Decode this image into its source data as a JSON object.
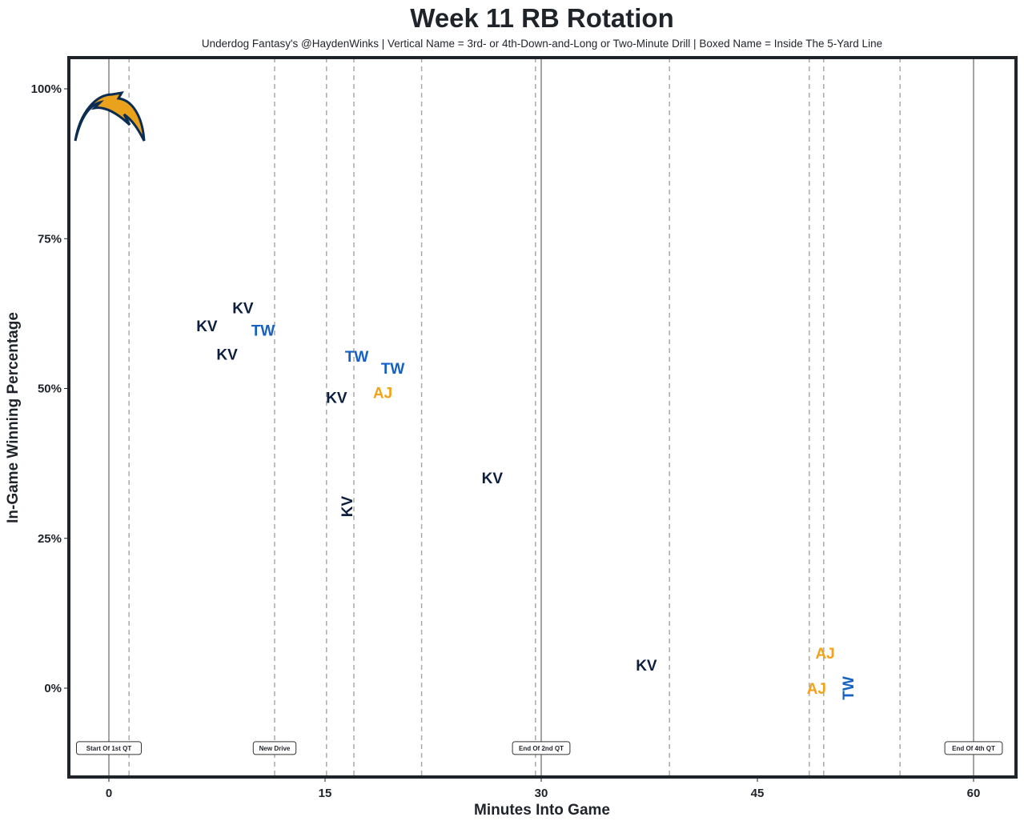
{
  "chart_data": {
    "type": "scatter",
    "title": "Week 11 RB Rotation",
    "subtitle": "Underdog Fantasy's @HaydenWinks | Vertical Name = 3rd- or 4th-Down-and-Long or Two-Minute Drill | Boxed Name = Inside The 5-Yard Line",
    "xlabel": "Minutes Into Game",
    "ylabel": "In-Game Winning Percentage",
    "xlim": [
      -2.8,
      63
    ],
    "ylim": [
      -15,
      105.2
    ],
    "xticks": [
      {
        "v": 0,
        "label": "0"
      },
      {
        "v": 15,
        "label": "15"
      },
      {
        "v": 30,
        "label": "30"
      },
      {
        "v": 45,
        "label": "45"
      },
      {
        "v": 60,
        "label": "60"
      }
    ],
    "yticks": [
      {
        "v": 0,
        "label": "0%"
      },
      {
        "v": 25,
        "label": "25%"
      },
      {
        "v": 50,
        "label": "50%"
      },
      {
        "v": 75,
        "label": "75%"
      },
      {
        "v": 100,
        "label": "100%"
      }
    ],
    "solid_lines": [
      0,
      30,
      60
    ],
    "dashed_lines": [
      1.4,
      11.5,
      15.1,
      17.0,
      21.7,
      29.6,
      38.9,
      48.6,
      49.6,
      54.9
    ],
    "annotations": [
      {
        "x": 0,
        "y": -10,
        "text": "Start Of 1st QT"
      },
      {
        "x": 11.5,
        "y": -10,
        "text": "New Drive"
      },
      {
        "x": 30,
        "y": -10,
        "text": "End Of 2nd QT"
      },
      {
        "x": 60,
        "y": -10,
        "text": "End Of 4th QT"
      }
    ],
    "colors": {
      "KV": "#0c1f3f",
      "TW": "#1560c4",
      "AJ": "#f5a21b"
    },
    "points": [
      {
        "x": 6.8,
        "y": 60.5,
        "label": "KV",
        "vertical": false
      },
      {
        "x": 8.2,
        "y": 58.7,
        "label": "KV",
        "vertical": false
      },
      {
        "x": 9.3,
        "y": 63.5,
        "label": "KV",
        "vertical": false
      },
      {
        "x": 10.7,
        "y": 62.7,
        "label": "TW",
        "vertical": false
      },
      {
        "x": 17.2,
        "y": 55.4,
        "label": "TW",
        "vertical": false
      },
      {
        "x": 19.7,
        "y": 53.4,
        "label": "TW",
        "vertical": false
      },
      {
        "x": 15.8,
        "y": 48.5,
        "label": "KV",
        "vertical": false
      },
      {
        "x": 19.0,
        "y": 49.3,
        "label": "AJ",
        "vertical": false
      },
      {
        "x": 16.5,
        "y": 30.3,
        "label": "KV",
        "vertical": true
      },
      {
        "x": 26.6,
        "y": 35.1,
        "label": "KV",
        "vertical": false
      },
      {
        "x": 37.3,
        "y": 3.9,
        "label": "KV",
        "vertical": false
      },
      {
        "x": 49.1,
        "y": 0,
        "label": "AJ",
        "vertical": false
      },
      {
        "x": 49.5,
        "y": 0,
        "label": "TW",
        "vertical": true
      },
      {
        "x": 49.7,
        "y": 0,
        "label": "AJ",
        "vertical": false
      }
    ]
  }
}
